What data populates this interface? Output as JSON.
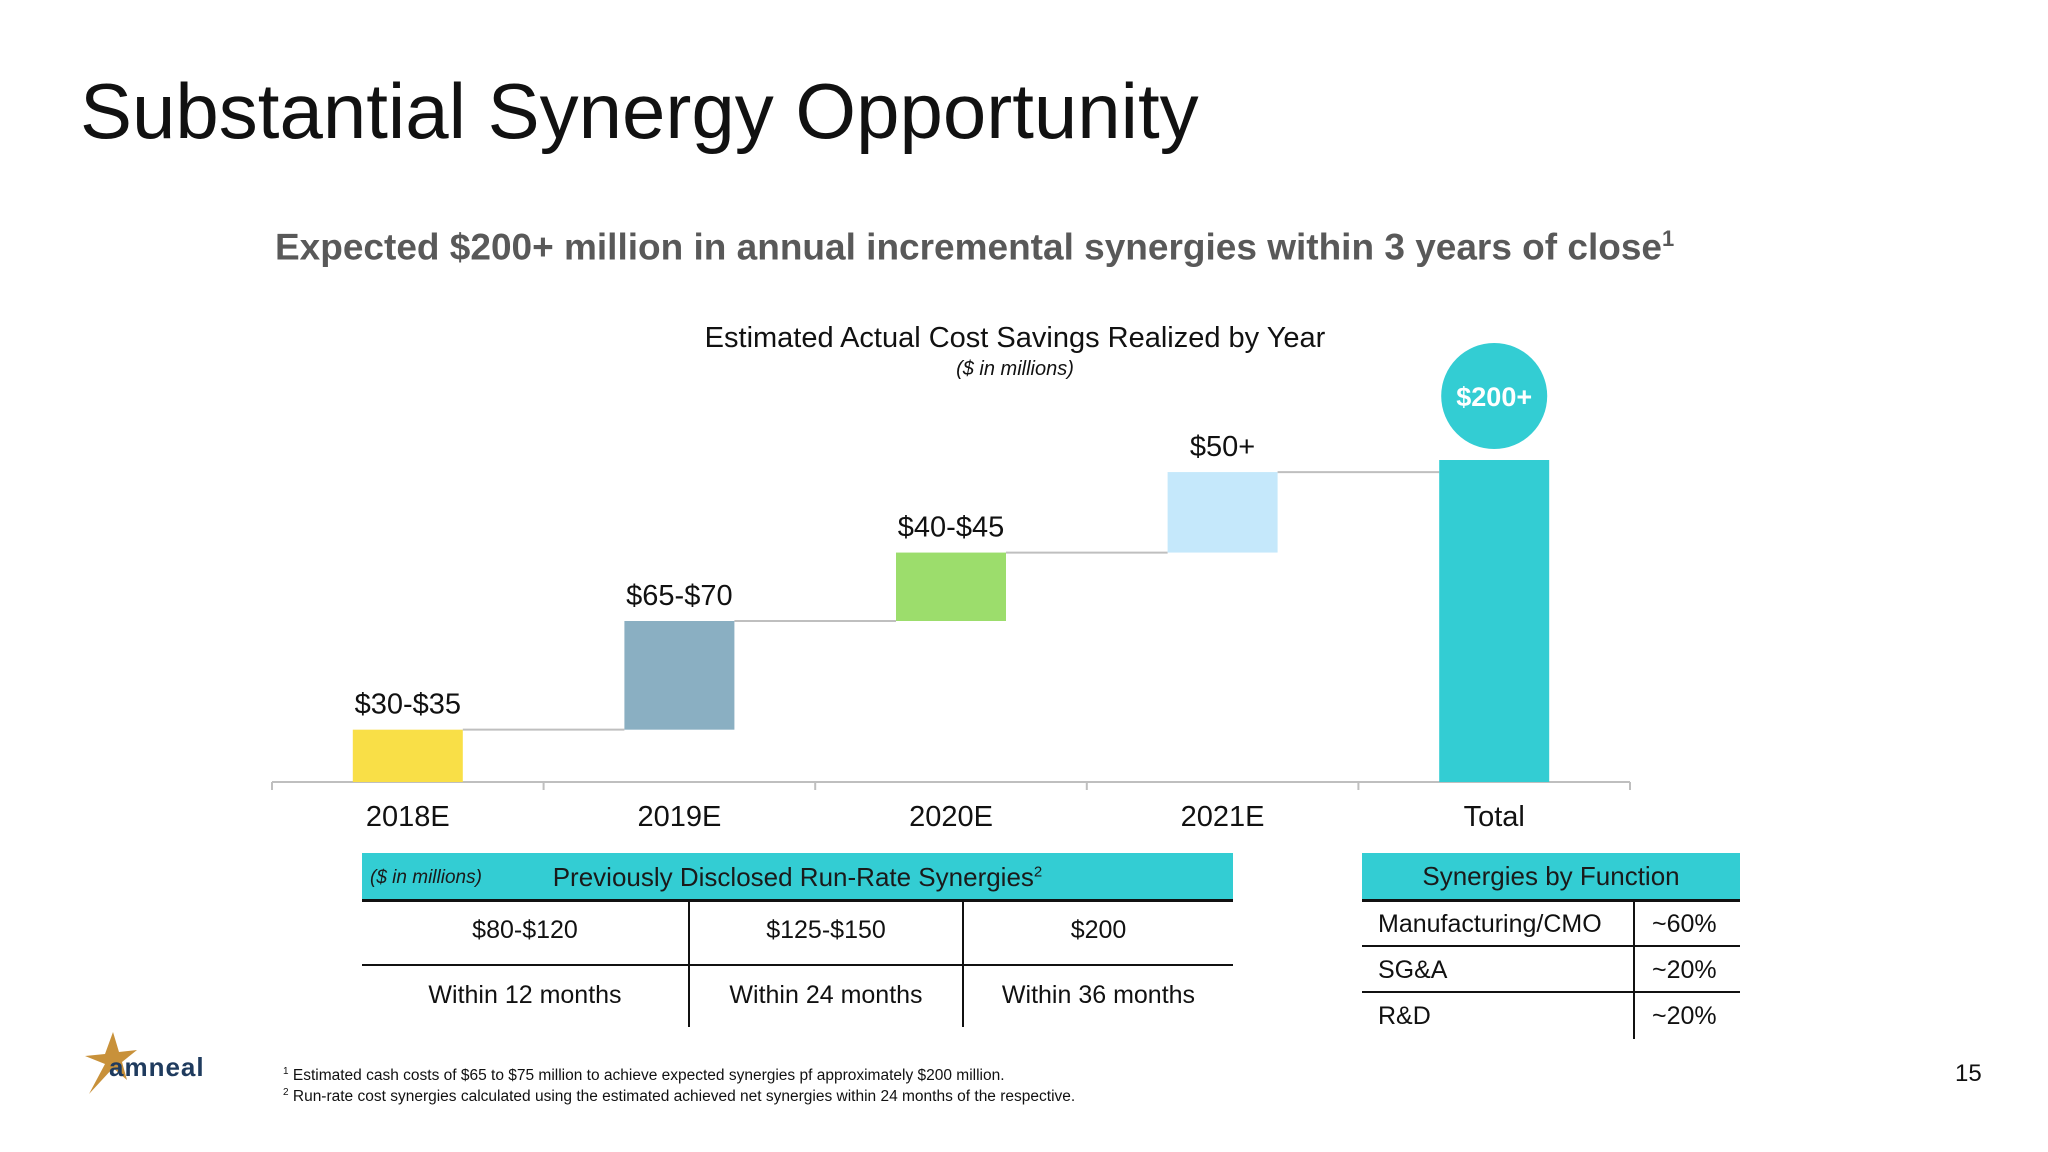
{
  "slide": {
    "title": "Substantial Synergy Opportunity",
    "headline": "Expected $200+ million in annual incremental synergies within 3 years of close",
    "headline_footnote": "1",
    "page_number": "15",
    "brand_color": "#33cdd3"
  },
  "chart_data": {
    "type": "bar",
    "subtype": "waterfall",
    "title": "Estimated Actual Cost Savings Realized by Year",
    "subtitle": "($ in millions)",
    "categories": [
      "2018E",
      "2019E",
      "2020E",
      "2021E",
      "Total"
    ],
    "data_labels": [
      "$30-$35",
      "$65-$70",
      "$40-$45",
      "$50+",
      "$200+"
    ],
    "values": [
      32.5,
      67.5,
      42.5,
      50,
      200
    ],
    "starts": [
      0,
      32.5,
      100,
      142.5,
      0
    ],
    "colors": [
      "#f9df47",
      "#8aafc2",
      "#9cdd6c",
      "#c5e8fb",
      "#33cdd3"
    ],
    "ylim": [
      0,
      200
    ],
    "grid": false,
    "legend": "none"
  },
  "runrate": {
    "unit_label": "($ in millions)",
    "title": "Previously Disclosed Run-Rate Synergies",
    "title_footnote": "2",
    "values": [
      "$80-$120",
      "$125-$150",
      "$200"
    ],
    "periods": [
      "Within 12 months",
      "Within 24 months",
      "Within 36 months"
    ]
  },
  "by_function": {
    "title": "Synergies by Function",
    "rows": [
      {
        "name": "Manufacturing/CMO",
        "share": "~60%"
      },
      {
        "name": "SG&A",
        "share": "~20%"
      },
      {
        "name": "R&D",
        "share": "~20%"
      }
    ]
  },
  "footnotes": [
    {
      "mark": "1",
      "text": "Estimated cash costs of $65 to $75 million to achieve expected synergies pf approximately $200 million."
    },
    {
      "mark": "2",
      "text": "Run-rate cost synergies calculated using the estimated achieved net synergies within 24 months of the respective."
    }
  ],
  "logo": {
    "text": "amneal",
    "mark_color": "#c8913a",
    "text_color": "#1f3b5e"
  }
}
